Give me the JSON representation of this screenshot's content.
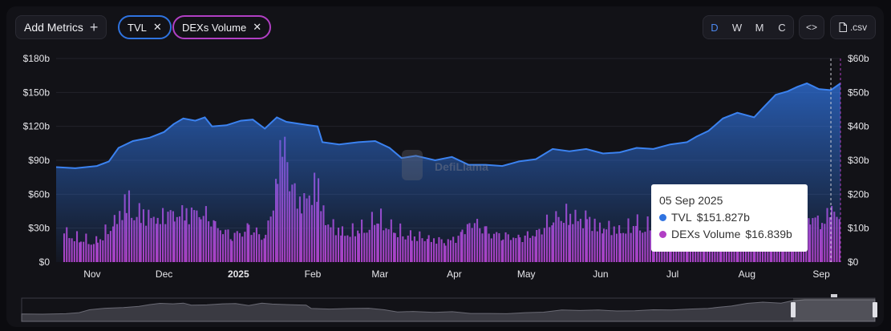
{
  "toolbar": {
    "add_metrics_label": "Add Metrics",
    "chips": [
      {
        "label": "TVL",
        "color": "#2f73e0"
      },
      {
        "label": "DEXs Volume",
        "color": "#b13fc4"
      }
    ],
    "range_options": [
      "D",
      "W",
      "M",
      "C"
    ],
    "range_active": "D",
    "embed_label": "<>",
    "csv_label": ".csv"
  },
  "watermark": "DefiLlama",
  "tooltip": {
    "date": "05 Sep 2025",
    "rows": [
      {
        "series": "TVL",
        "value": "$151.827b",
        "color": "#2f73e0"
      },
      {
        "series": "DEXs Volume",
        "value": "$16.839b",
        "color": "#b13fc4"
      }
    ]
  },
  "chart_data": {
    "type": "area",
    "grid": true,
    "y_left": {
      "ticks": [
        "$0",
        "$30b",
        "$60b",
        "$90b",
        "$120b",
        "$150b",
        "$180b"
      ],
      "range": [
        0,
        180
      ],
      "unit": "billion USD"
    },
    "y_right": {
      "ticks": [
        "$0",
        "$10b",
        "$20b",
        "$30b",
        "$40b",
        "$50b",
        "$60b"
      ],
      "range": [
        0,
        60
      ],
      "unit": "billion USD"
    },
    "x_range": [
      "2024-10-17",
      "2025-09-09"
    ],
    "x_ticks": [
      {
        "label": "Nov",
        "date": "2024-11-01",
        "bold": false
      },
      {
        "label": "Dec",
        "date": "2024-12-01",
        "bold": false
      },
      {
        "label": "2025",
        "date": "2025-01-01",
        "bold": true
      },
      {
        "label": "Feb",
        "date": "2025-02-01",
        "bold": false
      },
      {
        "label": "Mar",
        "date": "2025-03-01",
        "bold": false
      },
      {
        "label": "Apr",
        "date": "2025-04-01",
        "bold": false
      },
      {
        "label": "May",
        "date": "2025-05-01",
        "bold": false
      },
      {
        "label": "Jun",
        "date": "2025-06-01",
        "bold": false
      },
      {
        "label": "Jul",
        "date": "2025-07-01",
        "bold": false
      },
      {
        "label": "Aug",
        "date": "2025-08-01",
        "bold": false
      },
      {
        "label": "Sep",
        "date": "2025-09-01",
        "bold": false
      }
    ],
    "hover_date": "2025-09-05",
    "series": [
      {
        "name": "TVL",
        "type": "area",
        "axis": "left",
        "color": "#2f73e0",
        "points": [
          [
            "2024-10-17",
            84
          ],
          [
            "2024-10-25",
            83
          ],
          [
            "2024-11-03",
            85
          ],
          [
            "2024-11-08",
            89
          ],
          [
            "2024-11-12",
            101
          ],
          [
            "2024-11-18",
            107
          ],
          [
            "2024-11-25",
            110
          ],
          [
            "2024-12-01",
            115
          ],
          [
            "2024-12-05",
            122
          ],
          [
            "2024-12-09",
            127
          ],
          [
            "2024-12-14",
            125
          ],
          [
            "2024-12-18",
            128
          ],
          [
            "2024-12-21",
            120
          ],
          [
            "2024-12-27",
            121
          ],
          [
            "2025-01-02",
            125
          ],
          [
            "2025-01-07",
            126
          ],
          [
            "2025-01-12",
            118
          ],
          [
            "2025-01-17",
            128
          ],
          [
            "2025-01-21",
            124
          ],
          [
            "2025-01-27",
            122
          ],
          [
            "2025-02-03",
            120
          ],
          [
            "2025-02-05",
            106
          ],
          [
            "2025-02-12",
            104
          ],
          [
            "2025-02-20",
            106
          ],
          [
            "2025-02-27",
            107
          ],
          [
            "2025-03-05",
            101
          ],
          [
            "2025-03-10",
            92
          ],
          [
            "2025-03-16",
            94
          ],
          [
            "2025-03-24",
            90
          ],
          [
            "2025-03-31",
            93
          ],
          [
            "2025-04-07",
            86
          ],
          [
            "2025-04-14",
            86
          ],
          [
            "2025-04-21",
            85
          ],
          [
            "2025-04-28",
            89
          ],
          [
            "2025-05-05",
            91
          ],
          [
            "2025-05-12",
            100
          ],
          [
            "2025-05-19",
            98
          ],
          [
            "2025-05-26",
            100
          ],
          [
            "2025-06-02",
            96
          ],
          [
            "2025-06-09",
            97
          ],
          [
            "2025-06-16",
            101
          ],
          [
            "2025-06-23",
            100
          ],
          [
            "2025-06-30",
            104
          ],
          [
            "2025-07-07",
            106
          ],
          [
            "2025-07-11",
            111
          ],
          [
            "2025-07-16",
            116
          ],
          [
            "2025-07-22",
            127
          ],
          [
            "2025-07-28",
            132
          ],
          [
            "2025-08-04",
            128
          ],
          [
            "2025-08-08",
            137
          ],
          [
            "2025-08-13",
            148
          ],
          [
            "2025-08-18",
            151
          ],
          [
            "2025-08-22",
            155
          ],
          [
            "2025-08-26",
            158
          ],
          [
            "2025-08-31",
            153
          ],
          [
            "2025-09-05",
            152
          ],
          [
            "2025-09-09",
            158
          ]
        ]
      },
      {
        "name": "DEXs Volume",
        "type": "bar",
        "axis": "right",
        "color": "#b13fc4",
        "points": [
          [
            "2024-10-20",
            10
          ],
          [
            "2024-10-27",
            8
          ],
          [
            "2024-11-03",
            7
          ],
          [
            "2024-11-10",
            14
          ],
          [
            "2024-11-15",
            20
          ],
          [
            "2024-11-21",
            16
          ],
          [
            "2024-11-28",
            15
          ],
          [
            "2024-12-05",
            17
          ],
          [
            "2024-12-10",
            16
          ],
          [
            "2024-12-16",
            18
          ],
          [
            "2024-12-22",
            12
          ],
          [
            "2024-12-29",
            9
          ],
          [
            "2025-01-05",
            11
          ],
          [
            "2025-01-12",
            9
          ],
          [
            "2025-01-17",
            26
          ],
          [
            "2025-01-19",
            45
          ],
          [
            "2025-01-20",
            39
          ],
          [
            "2025-01-22",
            26
          ],
          [
            "2025-01-27",
            20
          ],
          [
            "2025-02-03",
            26
          ],
          [
            "2025-02-06",
            14
          ],
          [
            "2025-02-13",
            10
          ],
          [
            "2025-02-20",
            11
          ],
          [
            "2025-02-28",
            15
          ],
          [
            "2025-03-07",
            11
          ],
          [
            "2025-03-14",
            9
          ],
          [
            "2025-03-21",
            8
          ],
          [
            "2025-03-28",
            7
          ],
          [
            "2025-04-04",
            9
          ],
          [
            "2025-04-07",
            15
          ],
          [
            "2025-04-14",
            10
          ],
          [
            "2025-04-21",
            9
          ],
          [
            "2025-04-28",
            8
          ],
          [
            "2025-05-05",
            10
          ],
          [
            "2025-05-12",
            15
          ],
          [
            "2025-05-19",
            16
          ],
          [
            "2025-05-26",
            14
          ],
          [
            "2025-06-02",
            12
          ],
          [
            "2025-06-09",
            11
          ],
          [
            "2025-06-16",
            13
          ],
          [
            "2025-06-23",
            12
          ],
          [
            "2025-06-30",
            12
          ],
          [
            "2025-07-07",
            11
          ],
          [
            "2025-07-14",
            14
          ],
          [
            "2025-07-21",
            18
          ],
          [
            "2025-07-28",
            16
          ],
          [
            "2025-08-04",
            15
          ],
          [
            "2025-08-11",
            17
          ],
          [
            "2025-08-16",
            25
          ],
          [
            "2025-08-20",
            21
          ],
          [
            "2025-08-27",
            15
          ],
          [
            "2025-09-01",
            14
          ],
          [
            "2025-09-05",
            16.839
          ],
          [
            "2025-09-09",
            17
          ]
        ]
      }
    ],
    "brush": {
      "selected_range": [
        "2024-10-17",
        "2025-09-09"
      ]
    }
  }
}
